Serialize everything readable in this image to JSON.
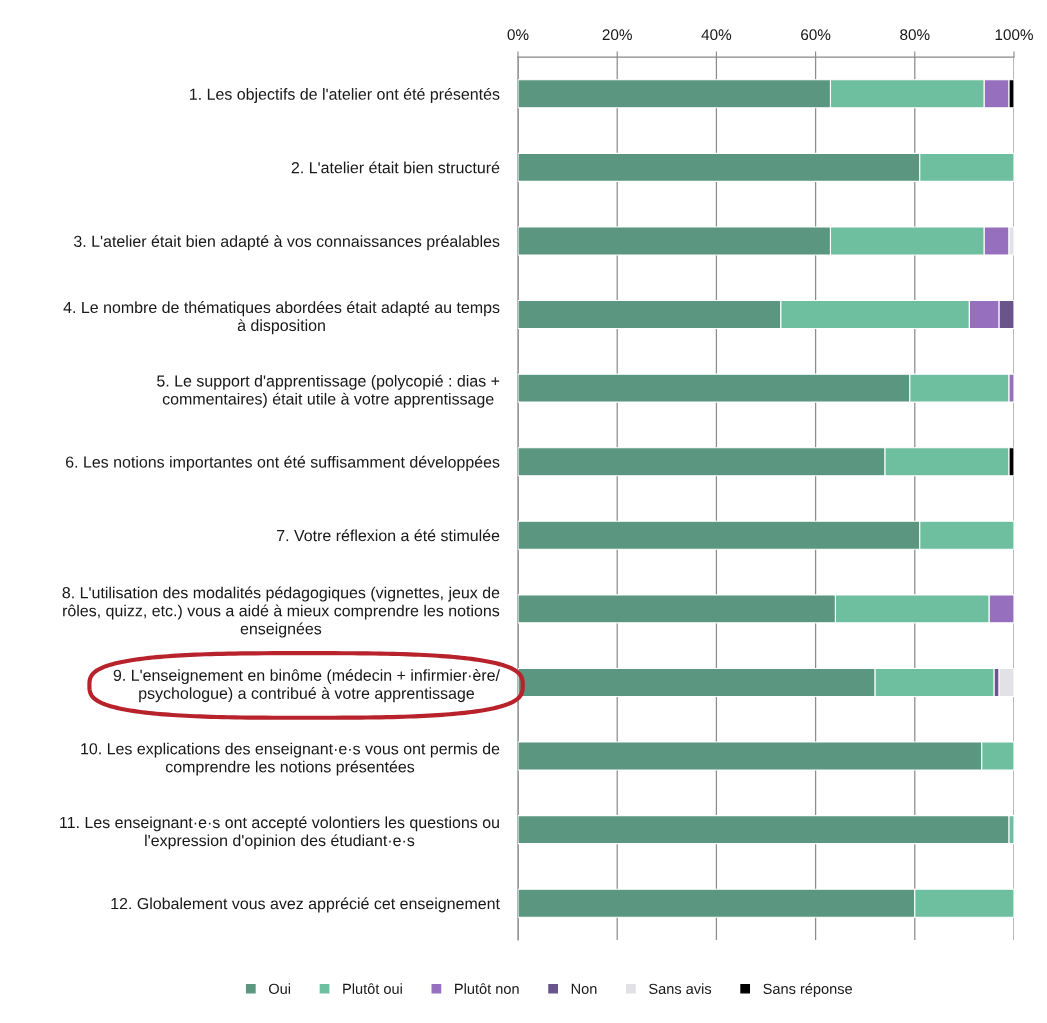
{
  "chart_data": {
    "type": "bar",
    "orientation": "horizontal",
    "stacked": true,
    "categories": [
      "1. Les objectifs de l'atelier ont été présentés",
      "2. L'atelier était bien structuré",
      "3. L'atelier était bien adapté à vos connaissances préalables",
      "4. Le nombre de thématiques abordées était adapté au temps\nà disposition",
      "5. Le support d'apprentissage (polycopié : dias +\ncommentaires) était utile à votre apprentissage",
      "6. Les notions importantes ont été suffisamment développées",
      "7. Votre réflexion a été stimulée",
      "8. L'utilisation des modalités pédagogiques (vignettes, jeux de\nrôles, quizz, etc.) vous a aidé à mieux comprendre les notions\nenseignées",
      "9. L'enseignement en binôme (médecin + infirmier·ère/\npsychologue) a contribué à votre apprentissage",
      "10. Les explications des enseignant·e·s vous ont permis de\ncomprendre les notions présentées",
      "11. Les enseignant·e·s ont accepté volontiers les questions ou\nl'expression d'opinion des étudiant·e·s",
      "12. Globalement vous avez apprécié cet enseignement"
    ],
    "series": [
      {
        "name": "Oui",
        "color": "#5a9680",
        "values": [
          63,
          81,
          63,
          53,
          79,
          74,
          81,
          64,
          72,
          93.5,
          99,
          80
        ]
      },
      {
        "name": "Plutôt oui",
        "color": "#6ebea0",
        "values": [
          31,
          19,
          31,
          38,
          20,
          25,
          19,
          31,
          24,
          6.5,
          1,
          20
        ]
      },
      {
        "name": "Plutôt non",
        "color": "#9670be",
        "values": [
          5,
          null,
          5,
          6,
          1,
          null,
          null,
          5,
          null,
          null,
          null,
          null
        ]
      },
      {
        "name": "Non",
        "color": "#69558c",
        "values": [
          null,
          null,
          null,
          3,
          null,
          null,
          null,
          null,
          1,
          null,
          null,
          null
        ]
      },
      {
        "name": "Sans avis",
        "color": "#e1e1e6",
        "values": [
          null,
          null,
          1,
          null,
          null,
          null,
          null,
          null,
          3,
          null,
          null,
          null
        ]
      },
      {
        "name": "Sans réponse",
        "color": "#000000",
        "values": [
          1,
          null,
          null,
          null,
          null,
          1,
          null,
          null,
          null,
          null,
          null,
          null
        ]
      }
    ],
    "xlim": [
      0,
      100
    ],
    "xticks": [
      {
        "value": 0,
        "label": "0%"
      },
      {
        "value": 20,
        "label": "20%"
      },
      {
        "value": 40,
        "label": "40%"
      },
      {
        "value": 60,
        "label": "60%"
      },
      {
        "value": 80,
        "label": "80%"
      },
      {
        "value": 100,
        "label": "100%"
      }
    ],
    "grid": "x",
    "legend": "bottom"
  }
}
